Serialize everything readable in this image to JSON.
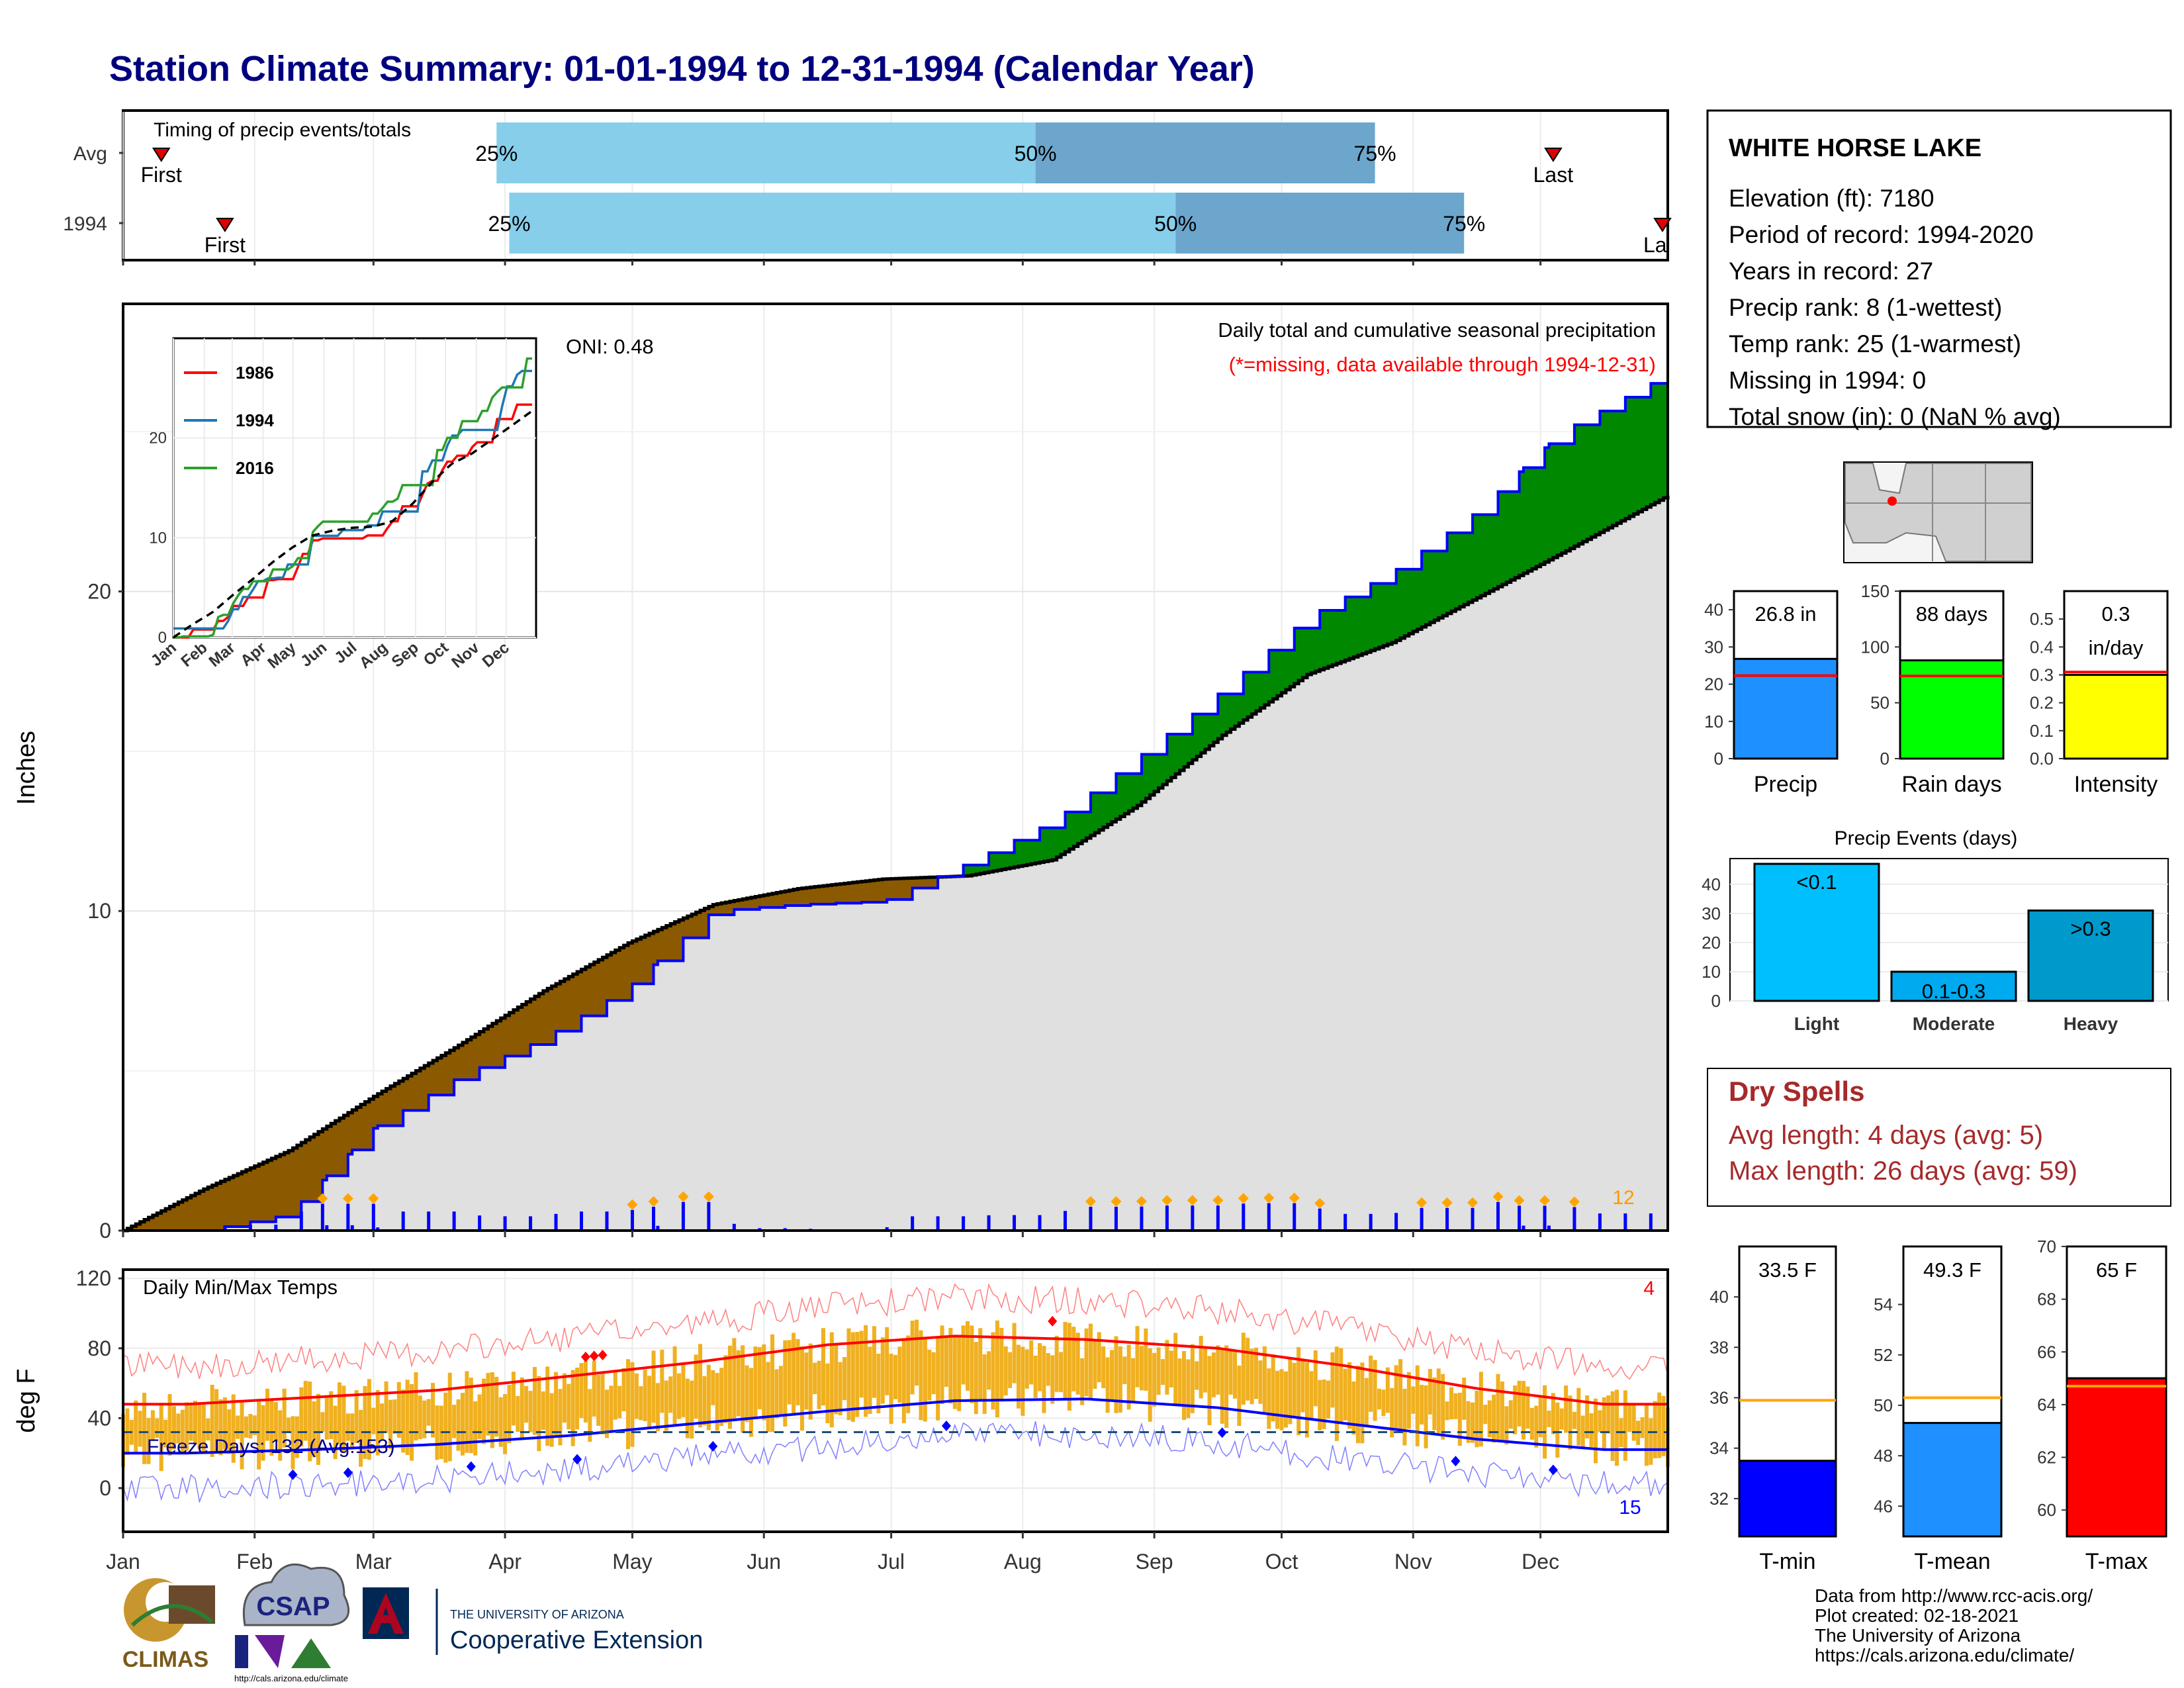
{
  "title": "Station Climate Summary: 01-01-1994 to 12-31-1994 (Calendar Year)",
  "timing": {
    "caption": "Timing of precip events/totals",
    "rows": [
      {
        "label": "Avg",
        "first_label": "First",
        "last_label": "Last",
        "first_day": 10,
        "last_day": 338,
        "p25_day": 89,
        "p50_day": 216,
        "p75_day": 296,
        "p25_label": "25%",
        "p50_label": "50%",
        "p75_label": "75%"
      },
      {
        "label": "1994",
        "first_label": "First",
        "last_label": "Last",
        "first_day": 25,
        "last_day": 365,
        "p25_day": 92,
        "p50_day": 249,
        "p75_day": 317,
        "p25_label": "25%",
        "p50_label": "50%",
        "p75_label": "75%"
      }
    ],
    "first_shown": "First",
    "last_shown_avg": "Last",
    "last_shown_1994": "La"
  },
  "precip_panel": {
    "ylabel": "Inches",
    "caption": "Daily total and cumulative seasonal precipitation",
    "missing_note": "(*=missing, data available through 1994-12-31)",
    "oni": "ONI: 0.48",
    "corner_count": "12",
    "yticks": [
      0,
      10,
      20
    ],
    "ylim": [
      0,
      29
    ]
  },
  "inset": {
    "legend": [
      "1986",
      "1994",
      "2016"
    ],
    "xticks": [
      "Jan",
      "Feb",
      "Mar",
      "Apr",
      "May",
      "Jun",
      "Jul",
      "Aug",
      "Sep",
      "Oct",
      "Nov",
      "Dec"
    ],
    "yticks": [
      0,
      10,
      20
    ],
    "ylim": [
      0,
      30
    ]
  },
  "temp_panel": {
    "ylabel": "deg F",
    "caption": "Daily Min/Max Temps",
    "freeze_label": "Freeze Days: 132 (Avg:153)",
    "hot_count": "4",
    "cold_count": "15",
    "yticks": [
      0,
      40,
      80,
      120
    ],
    "ylim": [
      -25,
      125
    ],
    "freeze_line": 32
  },
  "months": [
    "Jan",
    "Feb",
    "Mar",
    "Apr",
    "May",
    "Jun",
    "Jul",
    "Aug",
    "Sep",
    "Oct",
    "Nov",
    "Dec"
  ],
  "station": {
    "name": "WHITE HORSE LAKE",
    "lines": [
      "Elevation (ft): 7180",
      "Period of record: 1994-2020",
      "Years in record: 27",
      "Precip rank: 8 (1-wettest)",
      "Temp rank: 25 (1-warmest)",
      "Missing in 1994: 0",
      "Total snow (in): 0 (NaN % avg)"
    ]
  },
  "summary_bars": [
    {
      "label": "Precip",
      "value_label": "26.8 in",
      "value": 26.8,
      "avg": 22.3,
      "yticks": [
        0,
        10,
        20,
        30,
        40
      ],
      "ylim": [
        0,
        45
      ],
      "color": "#1e90ff"
    },
    {
      "label": "Rain days",
      "value_label": "88 days",
      "value": 88,
      "avg": 74,
      "yticks": [
        0,
        50,
        100,
        150
      ],
      "ylim": [
        0,
        150
      ],
      "color": "#00ff00"
    },
    {
      "label": "Intensity",
      "value_label": "0.3 in/day",
      "value": 0.3,
      "avg": 0.31,
      "yticks": [
        "0.0",
        "0.1",
        "0.2",
        "0.3",
        "0.4",
        "0.5"
      ],
      "ylim": [
        0,
        0.6
      ],
      "color": "#ffff00"
    }
  ],
  "events": {
    "title": "Precip Events (days)",
    "yticks": [
      0,
      10,
      20,
      30,
      40
    ],
    "ylim": [
      0,
      47
    ],
    "bars": [
      {
        "category": "Light",
        "label": "<0.1",
        "value": 47,
        "color": "#00bfff"
      },
      {
        "category": "Moderate",
        "label": "0.1-0.3",
        "value": 10,
        "color": "#00aaee"
      },
      {
        "category": "Heavy",
        "label": ">0.3",
        "value": 31,
        "color": "#0099cc"
      }
    ]
  },
  "dry_spells": {
    "title": "Dry Spells",
    "avg_line": "Avg length: 4 days (avg: 5)",
    "max_line": "Max length: 26 days (avg: 59)"
  },
  "temp_bars": [
    {
      "label": "T-min",
      "value_label": "33.5 F",
      "value": 33.5,
      "avg": 35.9,
      "yticks": [
        32,
        34,
        36,
        38,
        40
      ],
      "ylim": [
        30.5,
        42
      ],
      "color": "#0000ff"
    },
    {
      "label": "T-mean",
      "value_label": "49.3 F",
      "value": 49.3,
      "avg": 50.3,
      "yticks": [
        46,
        48,
        50,
        52,
        54
      ],
      "ylim": [
        44.8,
        56.3
      ],
      "color": "#1e90ff"
    },
    {
      "label": "T-max",
      "value_label": "65 F",
      "value": 65.0,
      "avg": 64.7,
      "yticks": [
        60,
        62,
        64,
        66,
        68,
        70
      ],
      "ylim": [
        59,
        70
      ],
      "color": "#ff0000"
    }
  ],
  "credits": [
    "Data from http://www.rcc-acis.org/",
    "Plot created: 02-18-2021",
    "The University of Arizona",
    "https://cals.arizona.edu/climate/"
  ],
  "logos": {
    "climas": "CLIMAS",
    "csap": "CSAP",
    "csap_url": "http://cals.arizona.edu/climate",
    "ua_top": "THE UNIVERSITY OF ARIZONA",
    "ua_bottom": "Cooperative Extension"
  },
  "colors": {
    "title": "#00007f",
    "deficit": "#8b5a00",
    "surplus": "#008800",
    "cum_line": "#0000ff",
    "normal_fill": "#e0e0e0",
    "tmax": "#ff0000",
    "tmin": "#0000ff",
    "band": "#f0b020",
    "light_blue": "#87ceeb",
    "mid_blue": "#6ca6cd",
    "dry": "#a52a2a"
  },
  "chart_data": [
    {
      "type": "area",
      "title": "Daily total and cumulative seasonal precipitation",
      "ylabel": "Inches",
      "x_unit": "day of year",
      "ylim": [
        0,
        29
      ],
      "series": [
        {
          "name": "normal cumulative",
          "x": [
            1,
            20,
            40,
            60,
            80,
            100,
            120,
            140,
            160,
            180,
            200,
            220,
            240,
            260,
            280,
            300,
            320,
            340,
            365
          ],
          "values": [
            0.0,
            1.3,
            2.5,
            4.2,
            5.8,
            7.5,
            9.0,
            10.2,
            10.7,
            11.0,
            11.1,
            11.6,
            13.3,
            15.5,
            17.4,
            18.4,
            19.8,
            21.2,
            23.0
          ]
        },
        {
          "name": "1994",
          "x": [
            1,
            20,
            40,
            60,
            80,
            100,
            120,
            140,
            160,
            180,
            200,
            220,
            240,
            260,
            280,
            300,
            320,
            340,
            365
          ],
          "values": [
            0.0,
            0.0,
            0.5,
            3.2,
            4.8,
            6.0,
            7.6,
            10.0,
            10.2,
            10.3,
            11.5,
            12.8,
            14.8,
            16.9,
            19.2,
            20.6,
            22.5,
            25.0,
            26.8
          ]
        }
      ]
    },
    {
      "type": "line",
      "title": "Daily Min/Max Temps",
      "ylabel": "deg F",
      "x_unit": "month",
      "categories": [
        "Jan",
        "Feb",
        "Mar",
        "Apr",
        "May",
        "Jun",
        "Jul",
        "Aug",
        "Sep",
        "Oct",
        "Nov",
        "Dec"
      ],
      "ylim": [
        -25,
        125
      ],
      "series": [
        {
          "name": "avg max",
          "values": [
            48,
            52,
            56,
            64,
            72,
            82,
            87,
            85,
            80,
            70,
            57,
            48
          ]
        },
        {
          "name": "avg min",
          "values": [
            20,
            22,
            25,
            30,
            37,
            44,
            50,
            51,
            46,
            37,
            28,
            22
          ]
        }
      ]
    }
  ]
}
